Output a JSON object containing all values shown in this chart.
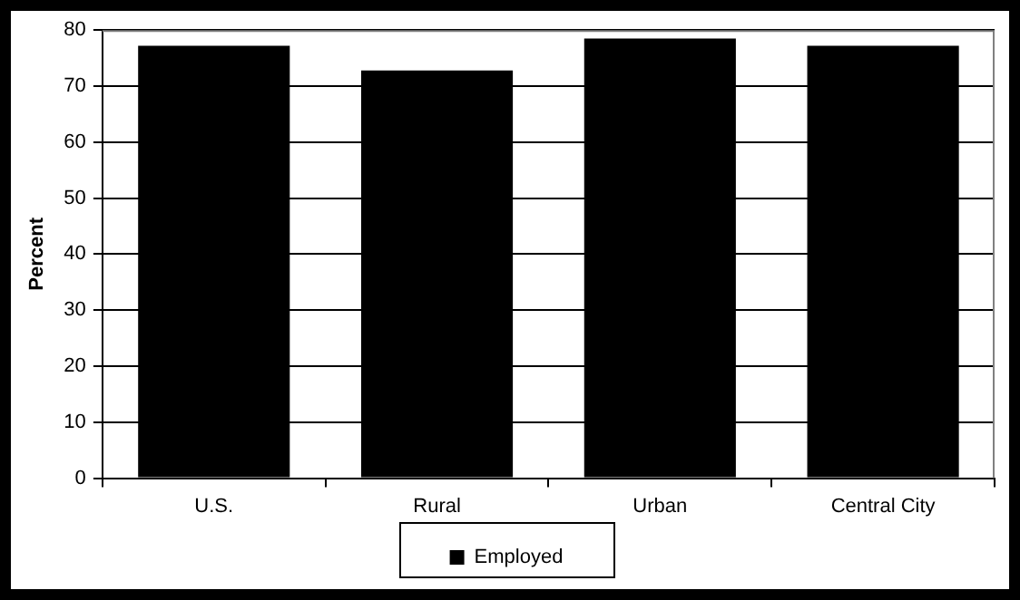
{
  "chart_data": {
    "type": "bar",
    "ylabel": "Percent",
    "categories": [
      "U.S.",
      "Rural",
      "Urban",
      "Central City"
    ],
    "series": [
      {
        "name": "Employed",
        "color": "#000000",
        "values": [
          77.2,
          72.8,
          78.5,
          77.2
        ]
      }
    ],
    "ylim": [
      0,
      80
    ],
    "yticks": [
      0,
      10,
      20,
      30,
      40,
      50,
      60,
      70,
      80
    ],
    "grid": "y",
    "legend": "bottom"
  }
}
